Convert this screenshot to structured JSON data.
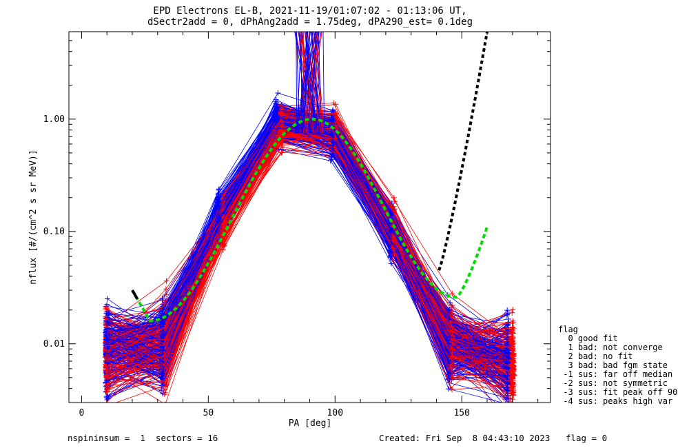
{
  "chart_data": {
    "type": "line",
    "title_line1": "EPD Electrons EL-B, 2021-11-19/01:07:02 - 01:13:06 UT,",
    "title_line2": "dSectr2add = 0, dPhAng2add = 1.75deg, dPA290_est=   0.1deg",
    "xlabel": "PA [deg]",
    "ylabel": "nflux [#/(cm^2 s sr MeV)]",
    "xlim": [
      -5,
      185
    ],
    "ylim": [
      0.003,
      6.0
    ],
    "y_scale": "log",
    "x_ticks": [
      0,
      50,
      100,
      150
    ],
    "x_tick_labels": [
      "0",
      "50",
      "100",
      "150"
    ],
    "y_ticks": [
      0.01,
      0.1,
      1.0
    ],
    "y_tick_labels": [
      "0.01",
      "0.10",
      "1.00"
    ],
    "grid": false,
    "colors": {
      "axes": "#000000",
      "spin_blue": "#0000ff",
      "spin_red": "#ff0000",
      "fit": "#00dd00",
      "fit_black": "#000000"
    },
    "spaghetti": {
      "pa_red": [
        10,
        33,
        56,
        79,
        100,
        123,
        146,
        170
      ],
      "pa_blue": [
        10,
        32,
        54,
        77,
        99,
        122,
        145,
        168
      ],
      "centre_log_nflux": [
        -2.05,
        -2.0,
        -0.9,
        -0.04,
        -0.12,
        -1.0,
        -2.0,
        -2.15
      ],
      "spread_log": [
        0.35,
        0.35,
        0.14,
        0.1,
        0.1,
        0.14,
        0.3,
        0.32
      ],
      "line_count_each_color": 180,
      "marker": "plus"
    },
    "fit_curve": {
      "pa_start": 20,
      "pa_end": 160,
      "y_at_20": 0.03,
      "y_at_27": 0.016,
      "y_peak": 1.0,
      "pa_peak": 91,
      "y_at_148": 0.026,
      "y_at_160": 0.11,
      "right_black_pa": [
        141,
        160
      ],
      "right_black_nflux_end": 6.0
    },
    "legend": {
      "title": "flag",
      "items": [
        "  0 good fit",
        "  1 bad: not converge",
        "  2 bad: no fit",
        "  3 bad: bad fgm state",
        " -1 sus: far off median",
        " -2 sus: not symmetric",
        " -3 sus: fit peak off 90",
        " -4 sus: peaks high var"
      ]
    }
  },
  "footer": {
    "left": "nspininsum =  1  sectors = 16",
    "right": "Created: Fri Sep  8 04:43:10 2023   flag = 0"
  }
}
